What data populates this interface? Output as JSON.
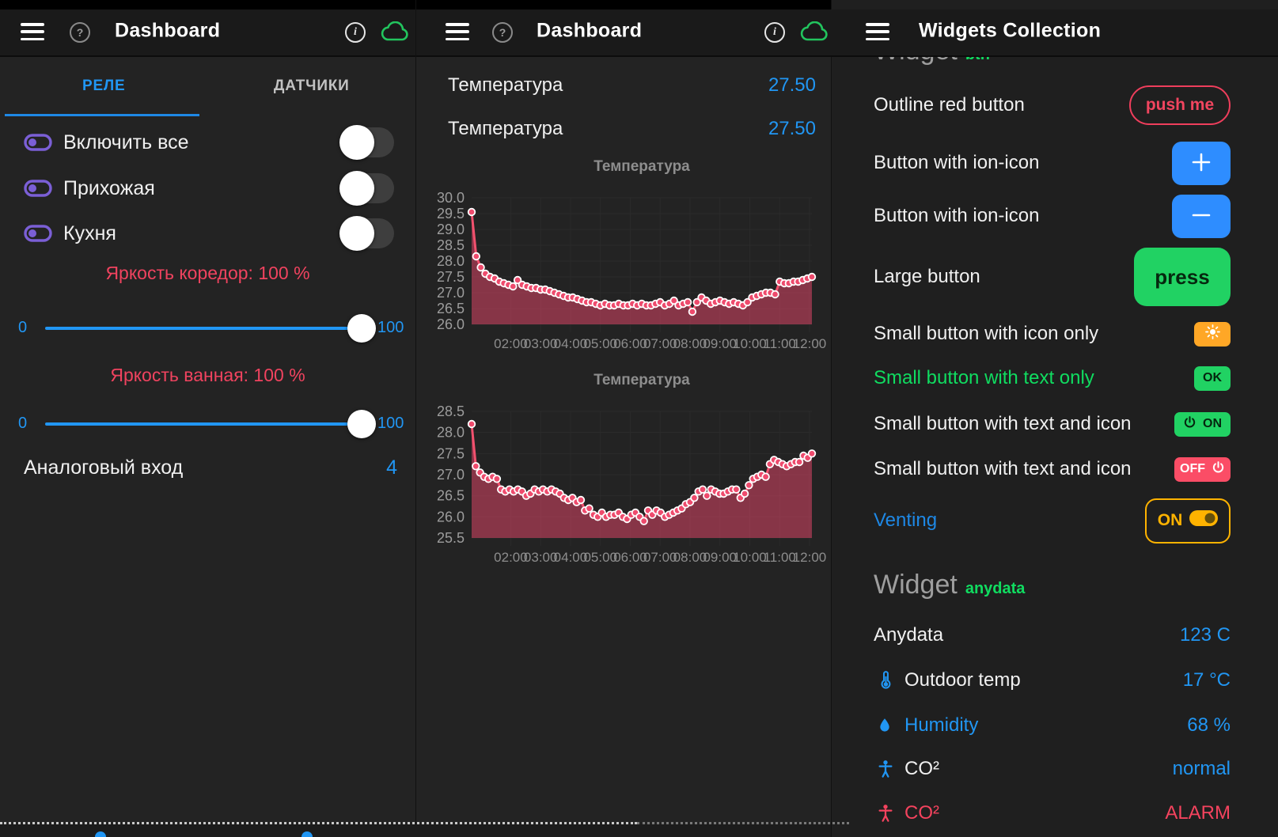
{
  "colors": {
    "accent_blue": "#2196f3",
    "ion_blue": "#2e8dff",
    "green": "#21d263",
    "green_text": "#10dc60",
    "orange": "#ffa726",
    "amber": "#ffb300",
    "red": "#f0435f",
    "red_button": "#fb4d66",
    "purple": "#7b5fd6",
    "chart_pink": "#f2516e",
    "cloud_green": "#22c55e"
  },
  "left": {
    "title": "Dashboard",
    "tabs": [
      {
        "label": "РЕЛЕ"
      },
      {
        "label": "ДАТЧИКИ"
      }
    ],
    "switches": [
      {
        "label": "Включить все"
      },
      {
        "label": "Прихожая"
      },
      {
        "label": "Кухня"
      }
    ],
    "sliders": [
      {
        "label": "Яркость коредор: 100 %",
        "min": "0",
        "max": "100",
        "value": 100
      },
      {
        "label": "Яркость ванная: 100 %",
        "min": "0",
        "max": "100",
        "value": 100
      }
    ],
    "analog": {
      "label": "Аналоговый вход",
      "value": "4"
    }
  },
  "middle": {
    "title": "Dashboard",
    "readings": [
      {
        "label": "Температура",
        "value": "27.50"
      },
      {
        "label": "Температура",
        "value": "27.50"
      }
    ]
  },
  "right": {
    "title": "Widgets Collection",
    "clipped_heading": {
      "title": "Widget",
      "tag": "btn"
    },
    "button_rows": [
      {
        "label": "Outline red button",
        "button": {
          "text": "push me"
        }
      },
      {
        "label": "Button with ion-icon",
        "button": {
          "icon": "plus"
        }
      },
      {
        "label": "Button with ion-icon",
        "button": {
          "icon": "minus"
        }
      },
      {
        "label": "Large button",
        "button": {
          "text": "press"
        }
      },
      {
        "label": "Small button with icon only",
        "button": {
          "icon": "sun"
        }
      },
      {
        "label": "Small button with text only",
        "button": {
          "text": "OK"
        }
      },
      {
        "label": "Small button with text and icon",
        "button": {
          "text": "ON",
          "icon": "power"
        }
      },
      {
        "label": "Small button with text and icon",
        "button": {
          "text": "OFF",
          "icon": "power"
        }
      },
      {
        "label": "Venting",
        "button": {
          "text": "ON",
          "icon": "toggle-on"
        }
      }
    ],
    "section_heading": {
      "title": "Widget",
      "tag": "anydata"
    },
    "data_rows": [
      {
        "label": "Anydata",
        "value": "123 C"
      },
      {
        "icon": "thermometer",
        "label": "Outdoor temp",
        "value": "17 °C"
      },
      {
        "icon": "water-drop",
        "label": "Humidity",
        "value": "68 %"
      },
      {
        "icon": "person",
        "label": "CO²",
        "value": "normal"
      },
      {
        "icon": "person",
        "label": "CO²",
        "value": "ALARM"
      }
    ]
  },
  "chart_data": [
    {
      "type": "line",
      "title": "Температура",
      "xlabel": "",
      "ylabel": "",
      "ylim": [
        26.0,
        30.0
      ],
      "y_ticks": [
        30.0,
        29.5,
        29.0,
        28.5,
        28.0,
        27.5,
        27.0,
        26.5,
        26.0
      ],
      "x_labels": [
        "02:00",
        "03:00",
        "04:00",
        "05:00",
        "06:00",
        "07:00",
        "08:00",
        "09:00",
        "10:00",
        "11:00",
        "12:00"
      ],
      "grid": true,
      "values": [
        29.55,
        28.15,
        27.8,
        27.6,
        27.5,
        27.45,
        27.35,
        27.3,
        27.25,
        27.2,
        27.4,
        27.25,
        27.2,
        27.15,
        27.15,
        27.1,
        27.1,
        27.05,
        27.0,
        26.95,
        26.9,
        26.85,
        26.85,
        26.8,
        26.75,
        26.7,
        26.7,
        26.65,
        26.6,
        26.65,
        26.6,
        26.6,
        26.65,
        26.6,
        26.6,
        26.65,
        26.6,
        26.65,
        26.6,
        26.6,
        26.65,
        26.7,
        26.6,
        26.65,
        26.75,
        26.6,
        26.65,
        26.7,
        26.4,
        26.7,
        26.85,
        26.75,
        26.65,
        26.7,
        26.75,
        26.7,
        26.65,
        26.7,
        26.65,
        26.6,
        26.7,
        26.85,
        26.9,
        26.95,
        27.0,
        27.0,
        26.95,
        27.35,
        27.3,
        27.3,
        27.35,
        27.35,
        27.4,
        27.45,
        27.5
      ]
    },
    {
      "type": "line",
      "title": "Температура",
      "xlabel": "",
      "ylabel": "",
      "ylim": [
        25.5,
        28.5
      ],
      "y_ticks": [
        28.5,
        28.0,
        27.5,
        27.0,
        26.5,
        26.0,
        25.5
      ],
      "x_labels": [
        "02:00",
        "03:00",
        "04:00",
        "05:00",
        "06:00",
        "07:00",
        "08:00",
        "09:00",
        "10:00",
        "11:00",
        "12:00"
      ],
      "grid": true,
      "values": [
        28.2,
        27.2,
        27.05,
        26.95,
        26.9,
        26.95,
        26.9,
        26.65,
        26.6,
        26.65,
        26.6,
        26.65,
        26.6,
        26.5,
        26.55,
        26.65,
        26.6,
        26.65,
        26.6,
        26.65,
        26.6,
        26.55,
        26.45,
        26.4,
        26.45,
        26.35,
        26.4,
        26.15,
        26.2,
        26.05,
        26.0,
        26.1,
        26.0,
        26.05,
        26.05,
        26.1,
        26.0,
        25.95,
        26.05,
        26.1,
        26.0,
        25.9,
        26.15,
        26.05,
        26.15,
        26.1,
        26.0,
        26.05,
        26.1,
        26.15,
        26.2,
        26.3,
        26.35,
        26.45,
        26.6,
        26.65,
        26.5,
        26.65,
        26.6,
        26.55,
        26.55,
        26.6,
        26.65,
        26.65,
        26.45,
        26.55,
        26.75,
        26.9,
        26.95,
        27.0,
        26.95,
        27.25,
        27.35,
        27.3,
        27.25,
        27.2,
        27.25,
        27.3,
        27.3,
        27.45,
        27.4,
        27.5
      ]
    }
  ]
}
